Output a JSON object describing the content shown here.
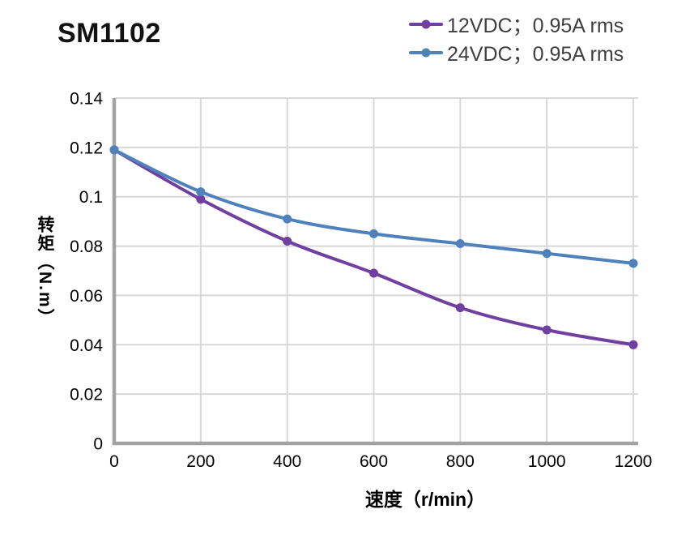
{
  "chart_data": {
    "type": "line",
    "title": "SM1102",
    "xlabel": "速度（r/min）",
    "ylabel": "转矩（N.m）",
    "x": [
      0,
      200,
      400,
      600,
      800,
      1000,
      1200
    ],
    "series": [
      {
        "name": "12VDC；0.95A rms",
        "color": "#7040A0",
        "values": [
          0.119,
          0.099,
          0.082,
          0.069,
          0.055,
          0.046,
          0.04
        ]
      },
      {
        "name": "24VDC；0.95A rms",
        "color": "#4F81BD",
        "values": [
          0.119,
          0.102,
          0.091,
          0.085,
          0.081,
          0.077,
          0.073
        ]
      }
    ],
    "xlim": [
      0,
      1200
    ],
    "ylim": [
      0,
      0.14
    ],
    "x_ticks": [
      "0",
      "200",
      "400",
      "600",
      "800",
      "1000",
      "1200"
    ],
    "y_ticks": [
      "0",
      "0.02",
      "0.04",
      "0.06",
      "0.08",
      "0.1",
      "0.12",
      "0.14"
    ],
    "grid": true,
    "legend_position": "top-right",
    "grid_color": "#D8D8D8",
    "axis_color": "#A3A3A3",
    "tick_color": "#000000",
    "legend_text_color": "#3F3F3F",
    "title_color": "#111111"
  }
}
